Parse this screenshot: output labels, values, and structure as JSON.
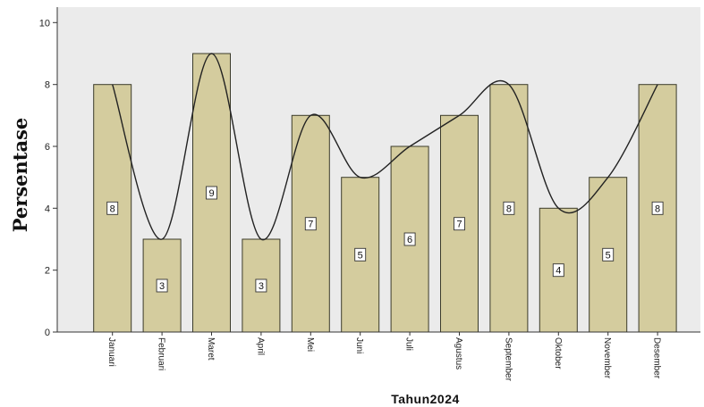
{
  "chart_data": {
    "type": "bar",
    "xlabel": "Tahun2024",
    "ylabel": "Persentase",
    "categories": [
      "Januari",
      "Februari",
      "Maret",
      "April",
      "Mei",
      "Juni",
      "Juli",
      "Agustus",
      "September",
      "Oktober",
      "November",
      "Desember"
    ],
    "values": [
      8,
      3,
      9,
      3,
      7,
      5,
      6,
      7,
      8,
      4,
      5,
      8
    ],
    "data_labels": [
      "8",
      "3",
      "9",
      "3",
      "7",
      "5",
      "6",
      "7",
      "8",
      "4",
      "5",
      "8"
    ],
    "ylim": [
      0,
      10.5
    ],
    "yticks": [
      0,
      2,
      4,
      6,
      8,
      10
    ],
    "ytick_labels": [
      "0",
      "2",
      "4",
      "6",
      "8",
      "10"
    ],
    "grid": false,
    "overlay": "smooth line through bar values",
    "colors": {
      "bar_fill": "#d4cc9e",
      "bar_stroke": "#3b3b2a",
      "plot_background": "#ebebeb",
      "line": "#222222"
    }
  }
}
